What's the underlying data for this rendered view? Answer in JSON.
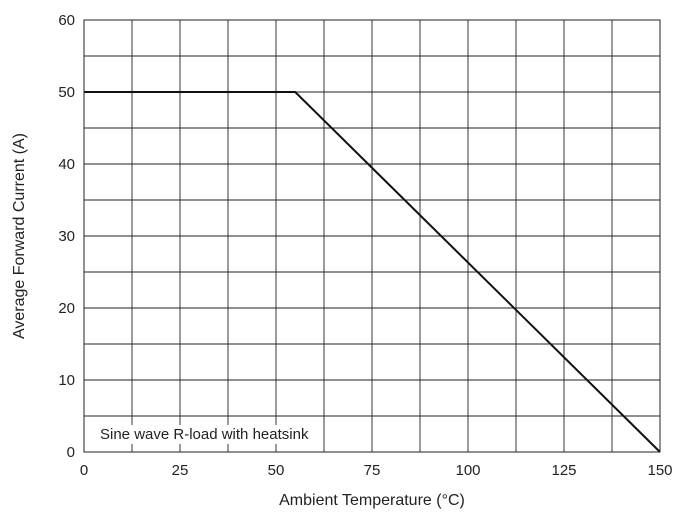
{
  "chart_data": {
    "type": "line",
    "title": "",
    "xlabel": "Ambient Temperature (°C)",
    "ylabel": "Average Forward Current (A)",
    "xlim": [
      0,
      150
    ],
    "ylim": [
      0,
      60
    ],
    "x_ticks": [
      0,
      25,
      50,
      75,
      100,
      125,
      150
    ],
    "y_ticks": [
      0,
      10,
      20,
      30,
      40,
      50,
      60
    ],
    "x_tick_labels": [
      "0",
      "25",
      "50",
      "75",
      "100",
      "125",
      "150"
    ],
    "y_tick_labels": [
      "0",
      "10",
      "20",
      "30",
      "40",
      "50",
      "60"
    ],
    "grid": true,
    "grid_x_step": 12.5,
    "grid_y_step": 5,
    "series": [
      {
        "x": [
          0,
          55,
          150
        ],
        "y": [
          50,
          50,
          0
        ]
      }
    ],
    "annotation": "Sine wave R-load with heatsink",
    "line_color": "#111111",
    "grid_color": "#222222"
  }
}
